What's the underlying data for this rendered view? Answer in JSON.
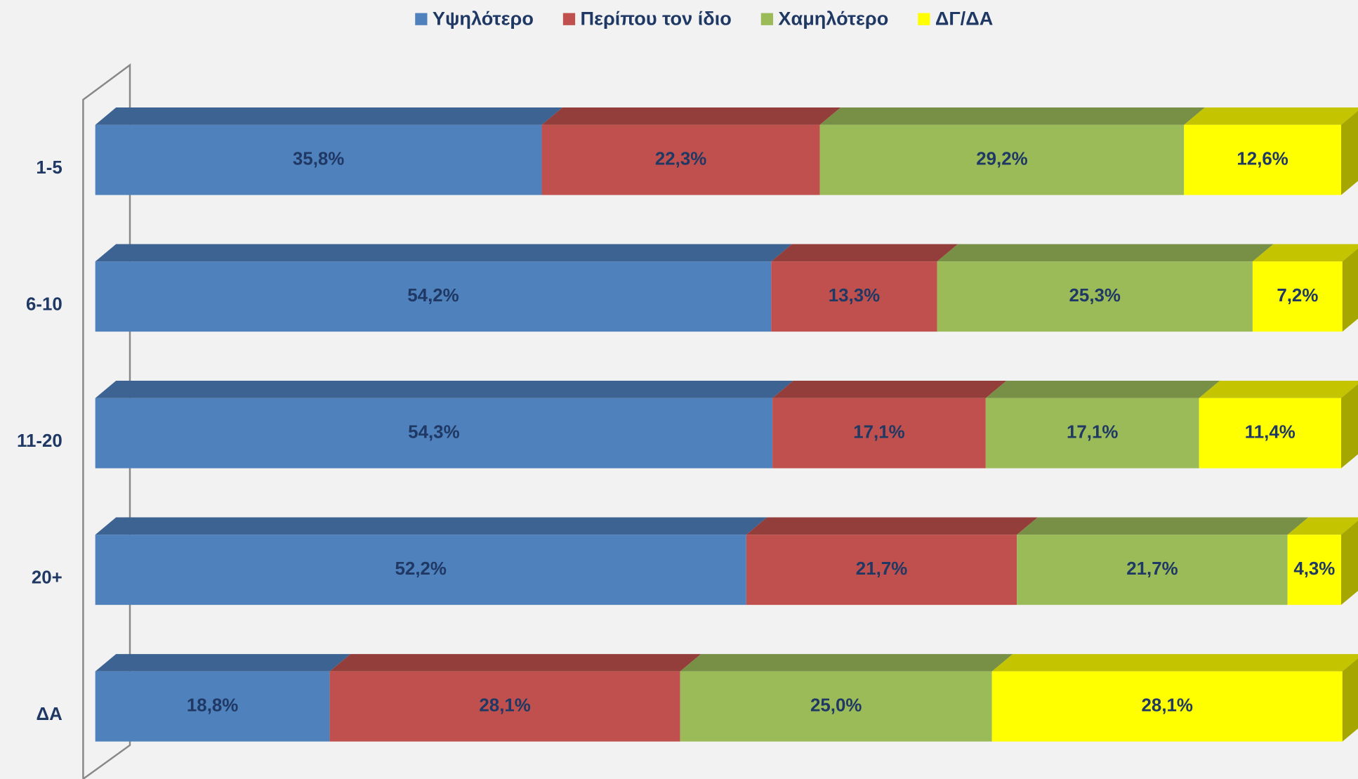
{
  "chart_data": {
    "type": "stacked-bar-horizontal",
    "categories": [
      "1-5",
      "6-10",
      "11-20",
      "20+",
      "ΔΑ"
    ],
    "xlim": [
      0,
      100
    ],
    "legend": "top",
    "series": [
      {
        "name": "Υψηλότερο",
        "color": "#4f81bd",
        "values": [
          35.8,
          54.2,
          54.3,
          52.2,
          18.8
        ],
        "value_labels": [
          "35,8%",
          "54,2%",
          "54,3%",
          "52,2%",
          "18,8%"
        ]
      },
      {
        "name": "Περίπου τον ίδιο",
        "color": "#c0504d",
        "values": [
          22.3,
          13.3,
          17.1,
          21.7,
          28.1
        ],
        "value_labels": [
          "22,3%",
          "13,3%",
          "17,1%",
          "21,7%",
          "28,1%"
        ]
      },
      {
        "name": "Χαμηλότερο",
        "color": "#9bbb59",
        "values": [
          29.2,
          25.3,
          17.1,
          21.7,
          25.0
        ],
        "value_labels": [
          "29,2%",
          "25,3%",
          "17,1%",
          "21,7%",
          "25,0%"
        ]
      },
      {
        "name": "ΔΓ/ΔΑ",
        "color": "#ffff00",
        "values": [
          12.6,
          7.2,
          11.4,
          4.3,
          28.1
        ],
        "value_labels": [
          "12,6%",
          "7,2%",
          "11,4%",
          "4,3%",
          "28,1%"
        ]
      }
    ]
  }
}
